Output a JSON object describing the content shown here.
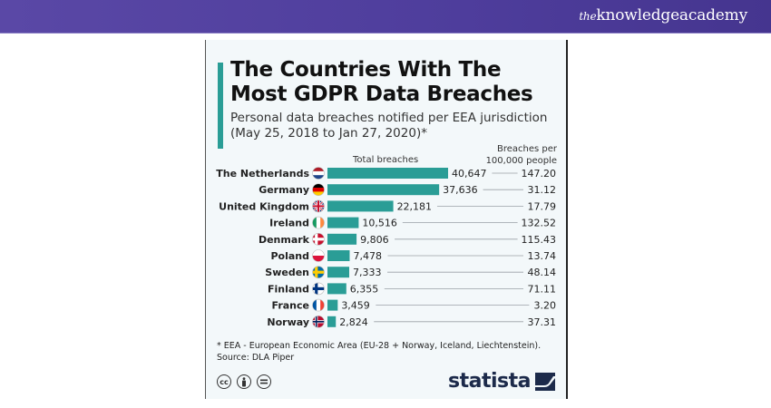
{
  "header": {
    "brand_the": "the",
    "brand_name": "knowledgeacademy"
  },
  "chart_data": {
    "type": "bar",
    "title": "The Countries With The Most GDPR Data Breaches",
    "subtitle": "Personal data breaches notified per EEA jurisdiction (May 25, 2018 to Jan 27, 2020)*",
    "subtitle_line1": "Personal data breaches notified per EEA jurisdiction",
    "subtitle_line2": "(May 25, 2018 to Jan 27, 2020)*",
    "orientation": "horizontal",
    "categories": [
      "The Netherlands",
      "Germany",
      "United Kingdom",
      "Ireland",
      "Denmark",
      "Poland",
      "Sweden",
      "Finland",
      "France",
      "Norway"
    ],
    "series": [
      {
        "name": "Total breaches",
        "values": [
          40647,
          37636,
          22181,
          10516,
          9806,
          7478,
          7333,
          6355,
          3459,
          2824
        ],
        "labels": [
          "40,647",
          "37,636",
          "22,181",
          "10,516",
          "9,806",
          "7,478",
          "7,333",
          "6,355",
          "3,459",
          "2,824"
        ]
      },
      {
        "name": "Breaches per 100,000 people",
        "values": [
          147.2,
          31.12,
          17.79,
          132.52,
          115.43,
          13.74,
          48.14,
          71.11,
          3.2,
          37.31
        ],
        "labels": [
          "147.20",
          "31.12",
          "17.79",
          "132.52",
          "115.43",
          "13.74",
          "48.14",
          "71.11",
          "3.20",
          "37.31"
        ]
      }
    ],
    "flags": [
      "flag-netherlands",
      "flag-germany",
      "flag-united-kingdom",
      "flag-ireland",
      "flag-denmark",
      "flag-poland",
      "flag-sweden",
      "flag-finland",
      "flag-france",
      "flag-norway"
    ],
    "column_headers": {
      "total": "Total breaches",
      "rate_line1": "Breaches per",
      "rate_line2": "100,000 people"
    },
    "xlim": [
      0,
      40647
    ],
    "grid": false,
    "legend": "none",
    "bar_color": "#2a9d96",
    "footnote": "* EEA - European Economic Area (EU-28 + Norway, Iceland, Liechtenstein).",
    "source": "Source: DLA Piper",
    "brand": "statista"
  },
  "license_icons": [
    "cc",
    "by",
    "nd"
  ]
}
